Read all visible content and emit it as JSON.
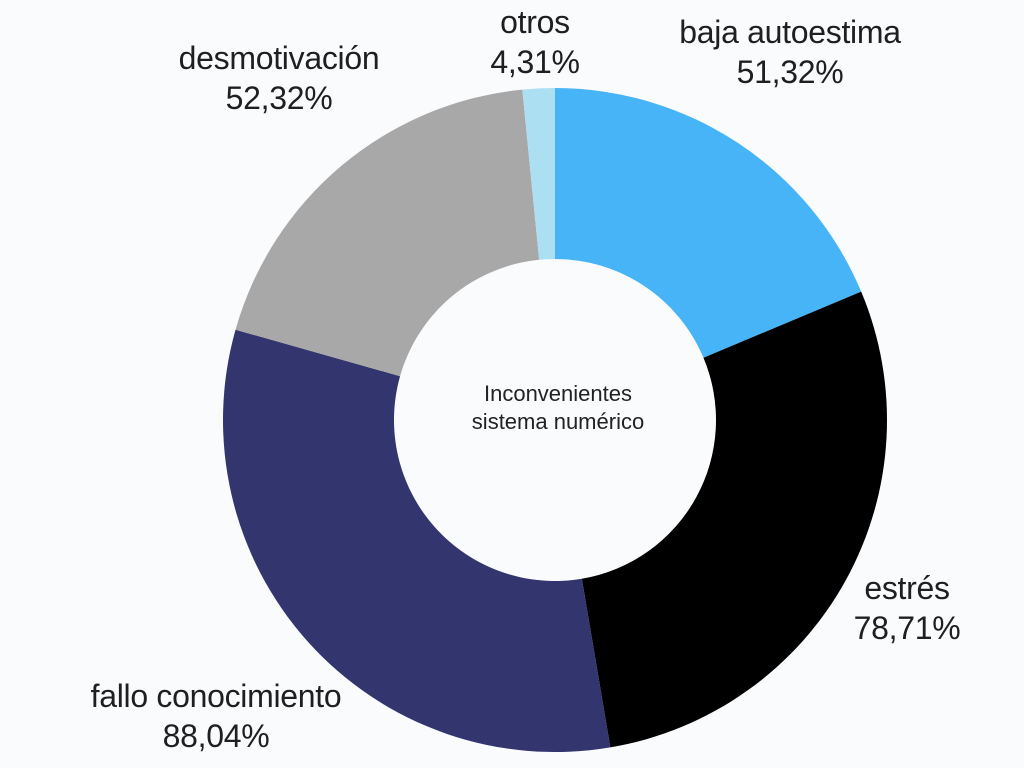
{
  "background_color": "#fafbfd",
  "text_color": "#1f1f1f",
  "chart_data": {
    "type": "pie",
    "subtype": "donut",
    "title": "Inconvenientes sistema numérico",
    "center_label": {
      "line1": "Inconvenientes",
      "line2": "sistema numérico"
    },
    "hole_ratio": 0.485,
    "start_angle_deg": 0,
    "direction": "clockwise",
    "legend": "none",
    "labels_outside": true,
    "values_sum": 274.7,
    "slices": [
      {
        "label": "baja autoestima",
        "value": 51.32,
        "display": "51,32%",
        "color": "#47b4f8"
      },
      {
        "label": "estrés",
        "value": 78.71,
        "display": "78,71%",
        "color": "#000000"
      },
      {
        "label": "fallo conocimiento",
        "value": 88.04,
        "display": "88,04%",
        "color": "#32356e"
      },
      {
        "label": "desmotivación",
        "value": 52.32,
        "display": "52,32%",
        "color": "#a8a8a8"
      },
      {
        "label": "otros",
        "value": 4.31,
        "display": "4,31%",
        "color": "#addff3"
      }
    ]
  }
}
